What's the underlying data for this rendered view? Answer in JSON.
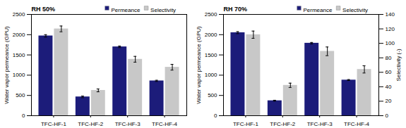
{
  "chart_data": [
    {
      "type": "bar",
      "title": "RH 50%",
      "categories": [
        "TFC-HF-1",
        "TFC-HF-2",
        "TFC-HF-3",
        "TFC-HF-4"
      ],
      "series": [
        {
          "name": "Permeance",
          "color": "#1c1c7a",
          "values": [
            1970,
            465,
            1700,
            860
          ],
          "errors": [
            30,
            20,
            20,
            15
          ]
        },
        {
          "name": "Selectivity",
          "color": "#c8c8c8",
          "axis": "y2",
          "values": [
            120,
            35,
            78,
            67
          ],
          "errors": [
            4,
            2,
            4,
            4
          ]
        }
      ],
      "ylabel": "Water vapor permeance (GPU)",
      "ylim": [
        0,
        2500
      ],
      "yticks": [
        0,
        500,
        1000,
        1500,
        2000,
        2500
      ],
      "y2lim": [
        0,
        140
      ],
      "legend": "upper right"
    },
    {
      "type": "bar",
      "title": "RH 70%",
      "categories": [
        "TFC-HF-1",
        "TFC-HF-2",
        "TFC-HF-3",
        "TFC-HF-4"
      ],
      "series": [
        {
          "name": "Permeance",
          "color": "#1c1c7a",
          "values": [
            2050,
            370,
            1790,
            880
          ],
          "errors": [
            25,
            12,
            18,
            12
          ]
        },
        {
          "name": "Selectivity",
          "color": "#c8c8c8",
          "axis": "y2",
          "values": [
            112,
            42,
            89,
            64
          ],
          "errors": [
            5,
            3,
            6,
            5
          ]
        }
      ],
      "ylabel": "Water vapor permeance (GPU)",
      "ylim": [
        0,
        2500
      ],
      "yticks": [
        0,
        500,
        1000,
        1500,
        2000,
        2500
      ],
      "y2label": "Selectivity (-)",
      "y2lim": [
        0,
        140
      ],
      "y2ticks": [
        0,
        20,
        40,
        60,
        80,
        100,
        120,
        140
      ],
      "legend": "upper right"
    }
  ]
}
